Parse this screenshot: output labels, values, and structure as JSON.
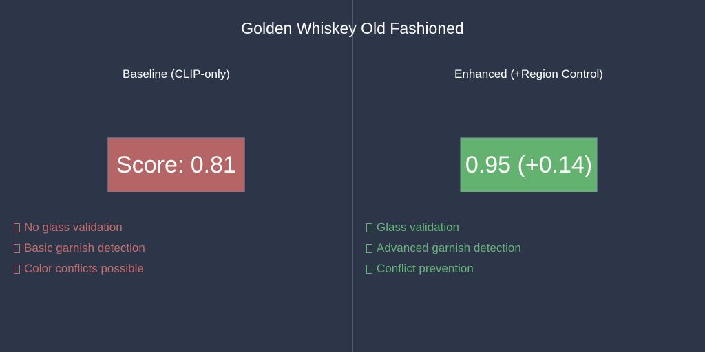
{
  "title": "Golden Whiskey Old Fashioned",
  "colors": {
    "background": "#2d3649",
    "divider": "#4e5a72",
    "baseline_accent": "#b56565",
    "enhanced_accent": "#63b270"
  },
  "baseline": {
    "heading": "Baseline (CLIP-only)",
    "score_label": "Score: 0.81",
    "features": [
      {
        "icon": "box-icon",
        "text": "No glass validation"
      },
      {
        "icon": "box-icon",
        "text": "Basic garnish detection"
      },
      {
        "icon": "box-icon",
        "text": "Color conflicts possible"
      }
    ]
  },
  "enhanced": {
    "heading": "Enhanced (+Region Control)",
    "score_label": "0.95 (+0.14)",
    "features": [
      {
        "icon": "box-icon",
        "text": "Glass validation"
      },
      {
        "icon": "box-icon",
        "text": "Advanced garnish detection"
      },
      {
        "icon": "box-icon",
        "text": "Conflict prevention"
      }
    ]
  }
}
